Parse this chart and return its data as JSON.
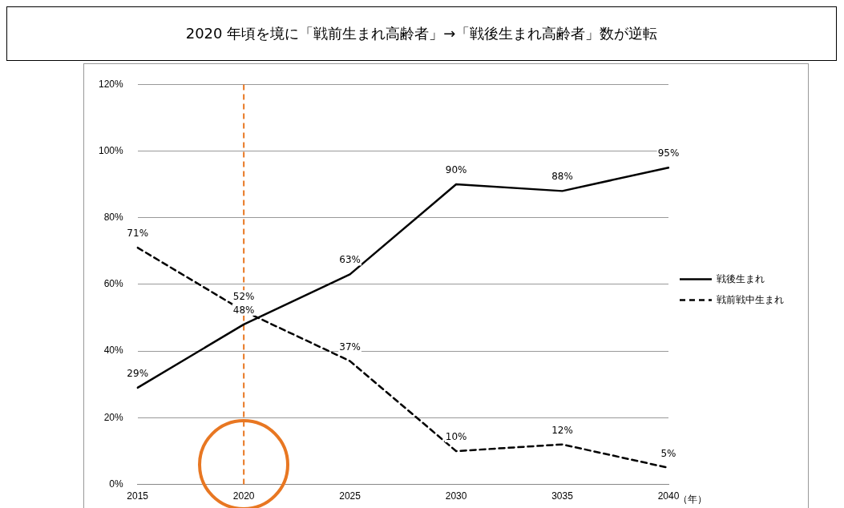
{
  "chart_data": {
    "type": "line",
    "title": "2020 年頃を境に「戦前生まれ高齢者」→「戦後生まれ高齢者」数が逆転",
    "xlabel": "（年）",
    "categories": [
      "2015",
      "2020",
      "2025",
      "2030",
      "3035",
      "2040"
    ],
    "series": [
      {
        "name": "戦後生まれ",
        "color": "#000000",
        "line_style": "solid",
        "values": [
          29,
          48,
          63,
          90,
          88,
          95
        ],
        "value_labels": [
          "29%",
          "48%",
          "63%",
          "90%",
          "88%",
          "95%"
        ]
      },
      {
        "name": "戦前戦中生まれ",
        "color": "#000000",
        "line_style": "dashed",
        "values": [
          71,
          52,
          37,
          10,
          12,
          5
        ],
        "value_labels": [
          "71%",
          "52%",
          "37%",
          "10%",
          "12%",
          "5%"
        ]
      }
    ],
    "ylim": [
      0,
      120
    ],
    "yticks": [
      {
        "value": 0,
        "label": "0%"
      },
      {
        "value": 20,
        "label": "20%"
      },
      {
        "value": 40,
        "label": "40%"
      },
      {
        "value": 60,
        "label": "60%"
      },
      {
        "value": 80,
        "label": "80%"
      },
      {
        "value": 100,
        "label": "100%"
      },
      {
        "value": 120,
        "label": "120%"
      }
    ],
    "grid": "y",
    "legend": "right",
    "marker": "none",
    "ref_lines": [
      {
        "axis": "x",
        "value": "2020",
        "color": "#e87722",
        "line_style": "dashed"
      }
    ]
  }
}
